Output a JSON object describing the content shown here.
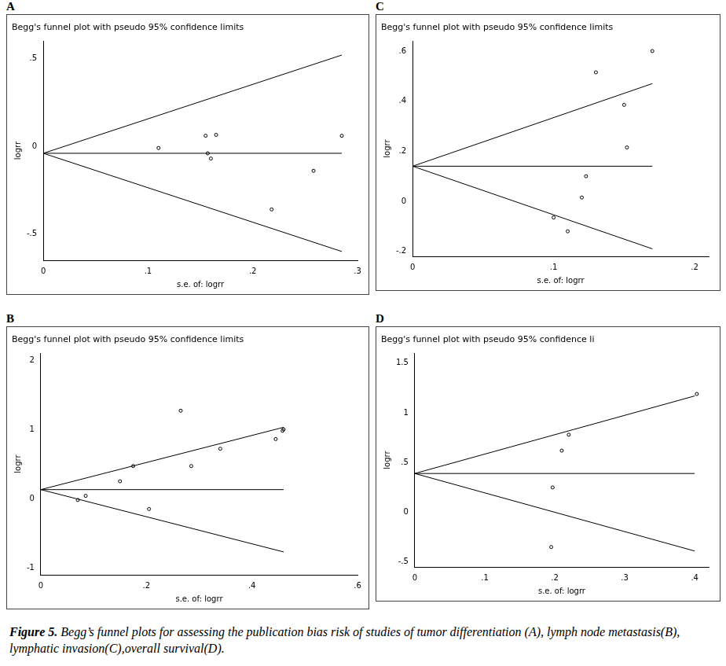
{
  "chart_data": [
    {
      "panel": "A",
      "type": "scatter",
      "title": "Begg's funnel plot with pseudo 95% confidence limits",
      "x_label": "s.e. of: logrr",
      "y_label": "logrr",
      "xlim": [
        0,
        0.3
      ],
      "xticks": [
        0,
        {
          "value": 0.1,
          "label": ".1"
        },
        {
          "value": 0.2,
          "label": ".2"
        },
        {
          "value": 0.3,
          "label": ".3"
        }
      ],
      "ylim": [
        -0.65,
        0.6
      ],
      "yticks": [
        {
          "value": -0.5,
          "label": "-.5"
        },
        0,
        {
          "value": 0.5,
          "label": ".5"
        }
      ],
      "grid": false,
      "color": "#000000",
      "series": [
        {
          "type": "scatter",
          "marker": "circle",
          "color": "#000000",
          "x": [
            0.11,
            0.155,
            0.165,
            0.157,
            0.16,
            0.218,
            0.258,
            0.285
          ],
          "values": [
            -0.01,
            0.06,
            0.065,
            -0.04,
            -0.07,
            -0.36,
            -0.14,
            0.06
          ]
        },
        {
          "type": "line",
          "line_style": "solid",
          "color": "#000000",
          "x": [
            0,
            0.285
          ],
          "values": [
            -0.04,
            0.52
          ]
        },
        {
          "type": "line",
          "line_style": "solid",
          "color": "#000000",
          "x": [
            0,
            0.285
          ],
          "values": [
            -0.04,
            -0.6
          ]
        },
        {
          "type": "line",
          "line_style": "solid",
          "color": "#000000",
          "x": [
            0,
            0.285
          ],
          "values": [
            -0.04,
            -0.04
          ]
        }
      ]
    },
    {
      "panel": "B",
      "type": "scatter",
      "title": "Begg's funnel plot with pseudo 95% confidence limits",
      "x_label": "s.e. of: logrr",
      "y_label": "logrr",
      "xlim": [
        0,
        0.6
      ],
      "xticks": [
        0,
        {
          "value": 0.2,
          "label": ".2"
        },
        {
          "value": 0.4,
          "label": ".4"
        },
        {
          "value": 0.6,
          "label": ".6"
        }
      ],
      "ylim": [
        -1.1,
        2.1
      ],
      "yticks": [
        -1,
        0,
        1,
        2
      ],
      "grid": false,
      "color": "#000000",
      "series": [
        {
          "type": "scatter",
          "marker": "circle",
          "color": "#000000",
          "x": [
            0.07,
            0.085,
            0.15,
            0.175,
            0.205,
            0.265,
            0.285,
            0.34,
            0.445,
            0.458,
            0.46
          ],
          "values": [
            -0.02,
            0.04,
            0.25,
            0.47,
            -0.15,
            1.27,
            0.47,
            0.72,
            0.86,
            0.98,
            1.0
          ]
        },
        {
          "type": "line",
          "line_style": "solid",
          "color": "#000000",
          "x": [
            0,
            0.46
          ],
          "values": [
            0.13,
            1.03
          ]
        },
        {
          "type": "line",
          "line_style": "solid",
          "color": "#000000",
          "x": [
            0,
            0.46
          ],
          "values": [
            0.13,
            -0.77
          ]
        },
        {
          "type": "line",
          "line_style": "solid",
          "color": "#000000",
          "x": [
            0,
            0.46
          ],
          "values": [
            0.13,
            0.13
          ]
        }
      ]
    },
    {
      "panel": "C",
      "type": "scatter",
      "title": "Begg's funnel plot with pseudo 95% confidence limits",
      "x_label": "s.e. of: logrr",
      "y_label": "logrr",
      "xlim": [
        0,
        0.21
      ],
      "xticks": [
        0,
        {
          "value": 0.1,
          "label": ".1"
        },
        {
          "value": 0.2,
          "label": ".2"
        }
      ],
      "ylim": [
        -0.22,
        0.64
      ],
      "yticks": [
        {
          "value": -0.2,
          "label": "-.2"
        },
        0,
        {
          "value": 0.2,
          "label": ".2"
        },
        {
          "value": 0.4,
          "label": ".4"
        },
        {
          "value": 0.6,
          "label": ".6"
        }
      ],
      "grid": false,
      "color": "#000000",
      "series": [
        {
          "type": "scatter",
          "marker": "circle",
          "color": "#000000",
          "x": [
            0.1,
            0.11,
            0.12,
            0.123,
            0.13,
            0.15,
            0.152,
            0.17
          ],
          "values": [
            -0.065,
            -0.12,
            0.015,
            0.1,
            0.515,
            0.385,
            0.215,
            0.6
          ]
        },
        {
          "type": "line",
          "line_style": "solid",
          "color": "#000000",
          "x": [
            0,
            0.17
          ],
          "values": [
            0.14,
            0.47
          ]
        },
        {
          "type": "line",
          "line_style": "solid",
          "color": "#000000",
          "x": [
            0,
            0.17
          ],
          "values": [
            0.14,
            -0.19
          ]
        },
        {
          "type": "line",
          "line_style": "solid",
          "color": "#000000",
          "x": [
            0,
            0.17
          ],
          "values": [
            0.14,
            0.14
          ]
        }
      ]
    },
    {
      "panel": "D",
      "type": "scatter",
      "title": "Begg's funnel plot with pseudo 95% confidence li",
      "x_label": "s.e. of: logrr",
      "y_label": "logrr",
      "xlim": [
        0,
        0.42
      ],
      "xticks": [
        0,
        {
          "value": 0.1,
          "label": ".1"
        },
        {
          "value": 0.2,
          "label": ".2"
        },
        {
          "value": 0.3,
          "label": ".3"
        },
        {
          "value": 0.4,
          "label": ".4"
        }
      ],
      "ylim": [
        -0.55,
        1.6
      ],
      "yticks": [
        {
          "value": -0.5,
          "label": "-.5"
        },
        0,
        {
          "value": 0.5,
          "label": ".5"
        },
        1,
        1.5
      ],
      "grid": false,
      "color": "#000000",
      "series": [
        {
          "type": "scatter",
          "marker": "circle",
          "color": "#000000",
          "x": [
            0.195,
            0.197,
            0.21,
            0.22,
            0.403
          ],
          "values": [
            -0.35,
            0.25,
            0.62,
            0.78,
            1.19
          ]
        },
        {
          "type": "line",
          "line_style": "solid",
          "color": "#000000",
          "x": [
            0,
            0.4
          ],
          "values": [
            0.39,
            1.17
          ]
        },
        {
          "type": "line",
          "line_style": "solid",
          "color": "#000000",
          "x": [
            0,
            0.4
          ],
          "values": [
            0.39,
            -0.39
          ]
        },
        {
          "type": "line",
          "line_style": "solid",
          "color": "#000000",
          "x": [
            0,
            0.4
          ],
          "values": [
            0.39,
            0.39
          ]
        }
      ]
    }
  ],
  "caption": {
    "label": "Figure 5.",
    "text": "Begg’s funnel plots for assessing the publication bias risk of studies of tumor differentiation (A), lymph node metastasis(B), lymphatic invasion(C),overall survival(D)."
  }
}
